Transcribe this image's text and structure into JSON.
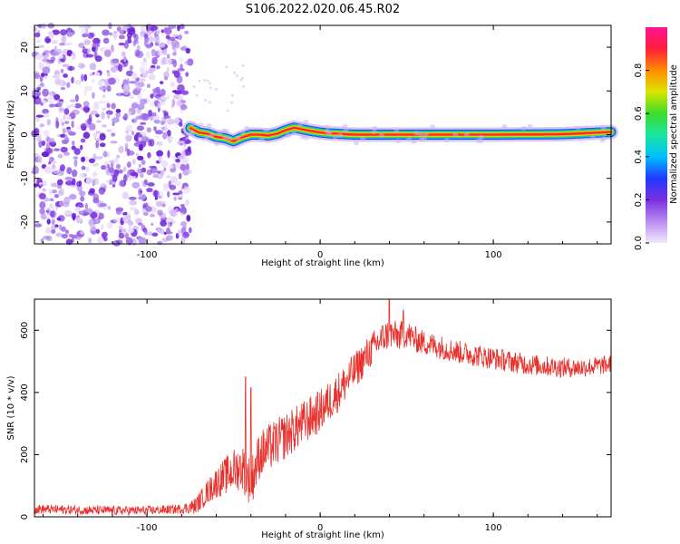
{
  "title": "S106.2022.020.06.45.R02",
  "colors": {
    "snr_line": "#e8312d",
    "noise_purple": "#7b2fe0",
    "colorbar": [
      "#f2eafb",
      "#b98cf0",
      "#7b2fe0",
      "#1f3bff",
      "#00bfff",
      "#19e6a0",
      "#3cdc28",
      "#d9e600",
      "#ff8c00",
      "#ff1e3c",
      "#ff1493"
    ]
  },
  "chart_data": [
    {
      "type": "heatmap",
      "xlabel": "Height of straight line (km)",
      "ylabel": "Frequency (Hz)",
      "xlim": [
        -165,
        168
      ],
      "ylim": [
        -25,
        25
      ],
      "xticks": [
        "-100",
        "0",
        "100"
      ],
      "yticks": [
        "-20",
        "-10",
        "0",
        "10",
        "20"
      ],
      "noise_region_x": [
        -165,
        -75
      ],
      "line_center_freq": [
        [
          -75,
          1.5
        ],
        [
          -70,
          0.5
        ],
        [
          -65,
          0.2
        ],
        [
          -60,
          -0.5
        ],
        [
          -55,
          -0.8
        ],
        [
          -50,
          -1.5
        ],
        [
          -45,
          -0.6
        ],
        [
          -40,
          0.0
        ],
        [
          -35,
          0.0
        ],
        [
          -30,
          -0.2
        ],
        [
          -25,
          0.2
        ],
        [
          -20,
          1.0
        ],
        [
          -15,
          1.6
        ],
        [
          -10,
          1.2
        ],
        [
          -5,
          0.8
        ],
        [
          0,
          0.5
        ],
        [
          5,
          0.3
        ],
        [
          10,
          0.2
        ],
        [
          20,
          0.0
        ],
        [
          50,
          0.0
        ],
        [
          100,
          0.0
        ],
        [
          140,
          0.1
        ],
        [
          168,
          0.6
        ]
      ],
      "colorbar": {
        "label": "Normalized spectral amplitude",
        "ticks": [
          "0.0",
          "0.2",
          "0.4",
          "0.6",
          "0.8"
        ],
        "range": [
          0,
          1
        ]
      }
    },
    {
      "type": "line",
      "xlabel": "Height of straight line (km)",
      "ylabel": "SNR (10 * v/v)",
      "xlim": [
        -165,
        168
      ],
      "ylim": [
        0,
        700
      ],
      "xticks": [
        "-100",
        "0",
        "100"
      ],
      "yticks": [
        "0",
        "200",
        "400",
        "600"
      ],
      "envelope": {
        "x": [
          -165,
          -140,
          -120,
          -100,
          -80,
          -72,
          -65,
          -60,
          -55,
          -50,
          -45,
          -40,
          -35,
          -30,
          -20,
          -10,
          0,
          10,
          20,
          30,
          35,
          40,
          45,
          50,
          55,
          60,
          70,
          80,
          90,
          100,
          110,
          120,
          130,
          140,
          150,
          160,
          168
        ],
        "y": [
          25,
          22,
          20,
          20,
          25,
          35,
          80,
          110,
          130,
          150,
          160,
          110,
          200,
          220,
          260,
          300,
          340,
          400,
          470,
          540,
          570,
          590,
          580,
          590,
          570,
          560,
          545,
          530,
          520,
          510,
          500,
          490,
          485,
          480,
          480,
          485,
          490
        ]
      },
      "noise_amplitude": {
        "x": [
          -165,
          -80,
          -70,
          -50,
          -40,
          0,
          20,
          40,
          60,
          168
        ],
        "y": [
          15,
          15,
          30,
          70,
          80,
          70,
          60,
          50,
          40,
          30
        ]
      },
      "peak_annotations": [
        [
          -43,
          450
        ],
        [
          -40,
          415
        ],
        [
          40,
          700
        ],
        [
          48,
          665
        ]
      ]
    }
  ]
}
